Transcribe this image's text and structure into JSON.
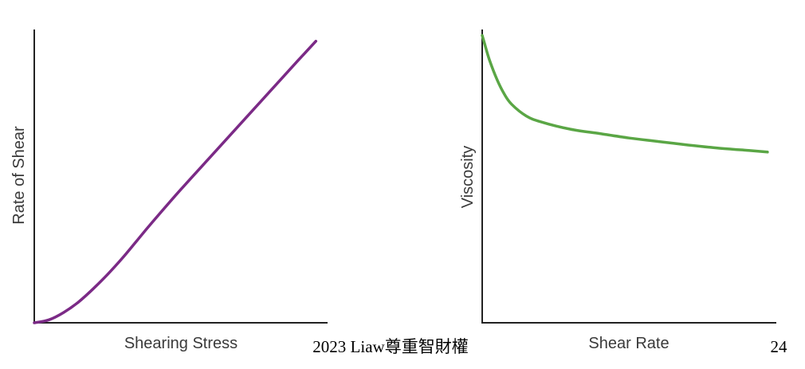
{
  "chart_data": [
    {
      "type": "line",
      "xlabel": "Shearing Stress",
      "ylabel": "Rate of Shear",
      "grid": false,
      "ticks": false,
      "xlim": [
        0,
        10
      ],
      "ylim": [
        0,
        10
      ],
      "series": [
        {
          "color": "#7b2a86",
          "x": [
            0,
            0.5,
            1.0,
            1.5,
            2.0,
            2.5,
            3.0,
            3.5,
            4.0,
            5.0,
            6.0,
            7.0,
            8.0,
            9.0,
            9.6
          ],
          "y": [
            0,
            0.1,
            0.35,
            0.7,
            1.15,
            1.65,
            2.2,
            2.8,
            3.4,
            4.55,
            5.65,
            6.75,
            7.85,
            8.95,
            9.6
          ]
        }
      ]
    },
    {
      "type": "line",
      "xlabel": "Shear Rate",
      "ylabel": "Viscosity",
      "grid": false,
      "ticks": false,
      "xlim": [
        0,
        10
      ],
      "ylim": [
        0,
        10
      ],
      "series": [
        {
          "color": "#5aa645",
          "x": [
            0,
            0.1,
            0.25,
            0.5,
            0.75,
            1.0,
            1.5,
            2.0,
            3.0,
            4.0,
            5.0,
            6.0,
            7.0,
            8.0,
            9.0,
            9.7
          ],
          "y": [
            9.8,
            9.45,
            8.95,
            8.3,
            7.8,
            7.45,
            7.05,
            6.85,
            6.6,
            6.45,
            6.3,
            6.18,
            6.06,
            5.96,
            5.88,
            5.82
          ]
        }
      ]
    }
  ],
  "footer": {
    "copyright": "2023 Liaw尊重智財權",
    "page_number": "24"
  }
}
